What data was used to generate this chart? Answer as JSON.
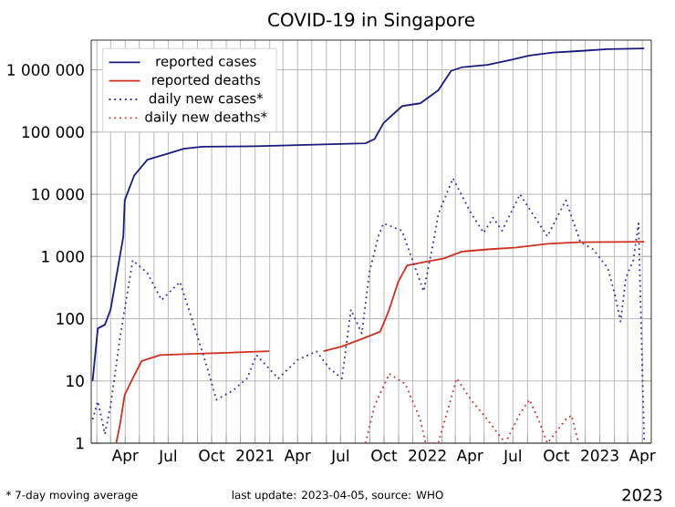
{
  "chart_data": {
    "type": "line",
    "title": "COVID-19 in Singapore",
    "log": "y",
    "grid": true,
    "legend": "top left",
    "xlim": [
      "2020-01-20",
      "2023-04-20"
    ],
    "ylim": [
      1,
      3000000
    ],
    "yticks": [
      1,
      10,
      100,
      {
        "value": 1000,
        "label": "1 000"
      },
      {
        "value": 10000,
        "label": "10 000"
      },
      {
        "value": 100000,
        "label": "100 000"
      },
      {
        "value": 1000000,
        "label": "1 000 000"
      }
    ],
    "xticks": [
      {
        "value": "2020-02-01",
        "label": null
      },
      {
        "value": "2020-03-01",
        "label": null
      },
      {
        "value": "2020-04-01",
        "label": "Apr"
      },
      {
        "value": "2020-05-01",
        "label": null
      },
      {
        "value": "2020-06-01",
        "label": null
      },
      {
        "value": "2020-07-01",
        "label": "Jul"
      },
      {
        "value": "2020-08-01",
        "label": null
      },
      {
        "value": "2020-09-01",
        "label": null
      },
      {
        "value": "2020-10-01",
        "label": "Oct"
      },
      {
        "value": "2020-11-01",
        "label": null
      },
      {
        "value": "2020-12-01",
        "label": null
      },
      {
        "value": "2021-01-01",
        "label": "2021"
      },
      {
        "value": "2021-02-01",
        "label": null
      },
      {
        "value": "2021-03-01",
        "label": null
      },
      {
        "value": "2021-04-01",
        "label": "Apr"
      },
      {
        "value": "2021-05-01",
        "label": null
      },
      {
        "value": "2021-06-01",
        "label": null
      },
      {
        "value": "2021-07-01",
        "label": "Jul"
      },
      {
        "value": "2021-08-01",
        "label": null
      },
      {
        "value": "2021-09-01",
        "label": null
      },
      {
        "value": "2021-10-01",
        "label": "Oct"
      },
      {
        "value": "2021-11-01",
        "label": null
      },
      {
        "value": "2021-12-01",
        "label": null
      },
      {
        "value": "2022-01-01",
        "label": "2022"
      },
      {
        "value": "2022-02-01",
        "label": null
      },
      {
        "value": "2022-03-01",
        "label": null
      },
      {
        "value": "2022-04-01",
        "label": "Apr"
      },
      {
        "value": "2022-05-01",
        "label": null
      },
      {
        "value": "2022-06-01",
        "label": null
      },
      {
        "value": "2022-07-01",
        "label": "Jul"
      },
      {
        "value": "2022-08-01",
        "label": null
      },
      {
        "value": "2022-09-01",
        "label": null
      },
      {
        "value": "2022-10-01",
        "label": "Oct"
      },
      {
        "value": "2022-11-01",
        "label": null
      },
      {
        "value": "2022-12-01",
        "label": null
      },
      {
        "value": "2023-01-01",
        "label": "2023"
      },
      {
        "value": "2023-02-01",
        "label": null
      },
      {
        "value": "2023-03-01",
        "label": null
      },
      {
        "value": "2023-04-01",
        "label": "Apr"
      }
    ],
    "series": [
      {
        "name": "reported cases",
        "color": "#1a1a80",
        "line_style": "solid",
        "x": [
          "2020-01-23",
          "2020-02-03",
          "2020-02-18",
          "2020-03-01",
          "2020-03-28",
          "2020-03-31",
          "2020-04-20",
          "2020-05-18",
          "2020-06-26",
          "2020-08-03",
          "2020-09-11",
          "2021-01-01",
          "2021-08-23",
          "2021-09-11",
          "2021-09-30",
          "2021-11-08",
          "2021-12-17",
          "2022-01-24",
          "2022-02-20",
          "2022-03-15",
          "2022-05-08",
          "2022-06-27",
          "2022-08-05",
          "2022-09-24",
          "2022-11-17",
          "2023-01-18",
          "2023-04-05"
        ],
        "values": [
          10,
          70,
          80,
          140,
          2100,
          8000,
          20000,
          36000,
          44000,
          54000,
          58000,
          59000,
          66000,
          77000,
          140000,
          260000,
          290000,
          470000,
          960000,
          1100000,
          1200000,
          1450000,
          1700000,
          1900000,
          2000000,
          2150000,
          2200000
        ]
      },
      {
        "name": "reported deaths",
        "color": "#d03020",
        "line_style": "solid",
        "x": [
          "2020-03-13",
          "2020-03-21",
          "2020-03-31",
          "2020-04-17",
          "2020-05-06",
          "2020-06-14",
          "2020-08-03",
          "2020-12-08",
          "2021-01-31",
          "2021-03-15",
          "2021-05-26",
          "2021-07-04",
          "2021-08-23",
          "2021-09-23",
          "2021-10-12",
          "2021-10-31",
          "2021-11-19",
          "2021-12-28",
          "2022-02-05",
          "2022-03-15",
          "2022-05-08",
          "2022-07-09",
          "2022-09-12",
          "2022-11-17",
          "2023-04-05"
        ],
        "values": [
          1,
          2,
          6,
          11,
          21,
          26,
          27,
          29,
          30,
          null,
          30,
          36,
          50,
          62,
          140,
          390,
          720,
          820,
          930,
          1200,
          1300,
          1400,
          1600,
          1700,
          1720
        ]
      },
      {
        "name": "daily new cases*",
        "color": "#3030a0",
        "line_style": "dotted",
        "x": [
          "2020-01-23",
          "2020-02-03",
          "2020-02-18",
          "2020-03-01",
          "2020-03-21",
          "2020-04-17",
          "2020-05-18",
          "2020-06-17",
          "2020-07-26",
          "2020-08-30",
          "2020-09-22",
          "2020-10-11",
          "2020-11-15",
          "2020-12-15",
          "2021-01-04",
          "2021-02-19",
          "2021-04-02",
          "2021-05-11",
          "2021-06-07",
          "2021-07-04",
          "2021-07-23",
          "2021-08-15",
          "2021-08-31",
          "2021-09-19",
          "2021-09-30",
          "2021-11-08",
          "2021-12-24",
          "2022-01-16",
          "2022-01-24",
          "2022-02-24",
          "2022-04-03",
          "2022-04-30",
          "2022-05-20",
          "2022-06-08",
          "2022-07-16",
          "2022-08-05",
          "2022-09-12",
          "2022-10-21",
          "2022-11-21",
          "2022-12-18",
          "2023-01-18",
          "2023-02-02",
          "2023-02-14",
          "2023-02-25",
          "2023-03-13",
          "2023-03-24",
          "2023-04-05"
        ],
        "values": [
          2.4,
          4.7,
          1.4,
          4,
          50,
          870,
          540,
          200,
          390,
          58,
          16,
          5,
          7,
          11,
          26,
          11,
          22,
          30,
          16,
          11,
          140,
          58,
          550,
          2100,
          3400,
          2600,
          275,
          2100,
          4800,
          18000,
          5000,
          2400,
          4200,
          2600,
          10000,
          5800,
          2100,
          8000,
          1700,
          1300,
          650,
          240,
          90,
          450,
          870,
          3400,
          1
        ]
      },
      {
        "name": "daily new deaths*",
        "color": "#cc3333",
        "line_style": "dotted",
        "x": [
          "2021-08-23",
          "2021-09-11",
          "2021-10-12",
          "2021-11-15",
          "2021-12-17",
          "2021-12-28",
          "2022-01-24",
          "2022-03-04",
          "2022-04-03",
          "2022-05-08",
          "2022-06-15",
          "2022-07-16",
          "2022-08-05",
          "2022-08-24",
          "2022-09-12",
          "2022-10-21",
          "2022-11-02",
          "2022-11-17"
        ],
        "values": [
          1,
          4,
          13,
          9,
          2.4,
          1,
          1,
          11,
          5,
          2.4,
          1,
          3,
          5,
          2.4,
          1,
          2.4,
          2.8,
          1
        ]
      }
    ],
    "annotations": [
      "* 7-day moving average",
      "last update: 2023-04-05, source: WHO",
      "2023"
    ]
  }
}
